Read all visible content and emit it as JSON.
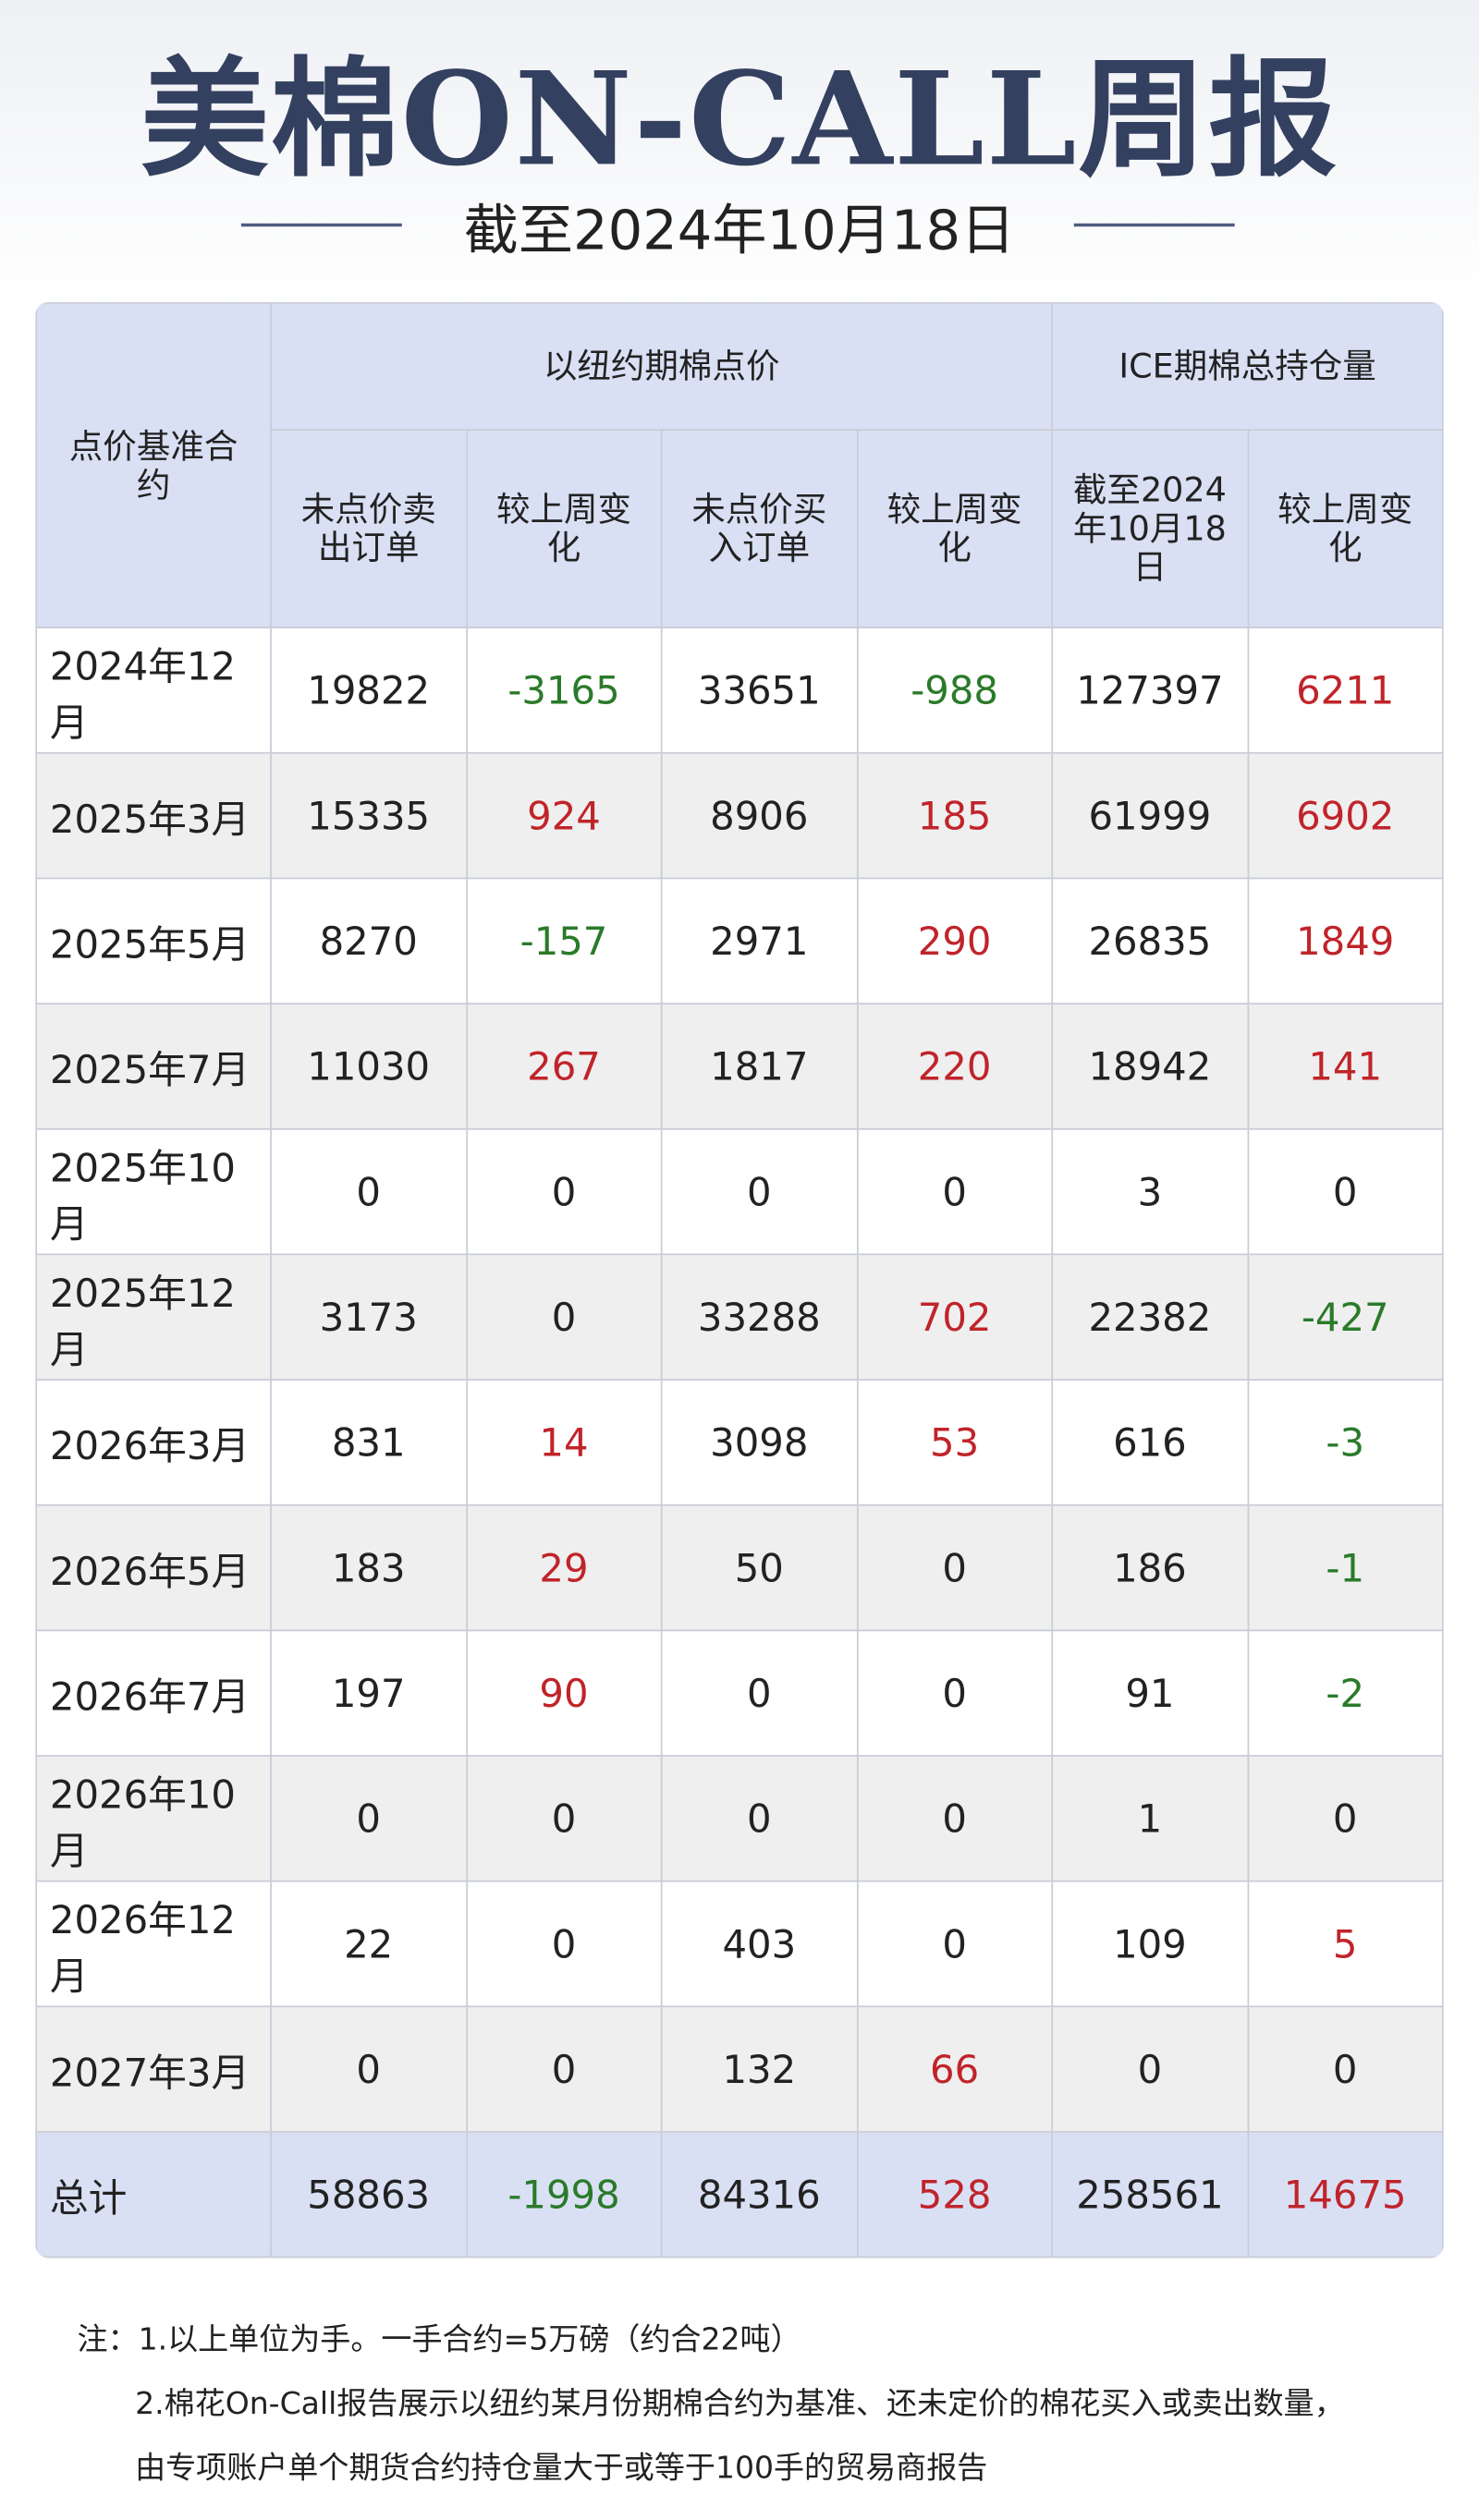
{
  "header": {
    "title": "美棉ON-CALL周报",
    "subtitle": "截至2024年10月18日"
  },
  "table": {
    "corner": "点价基准合约",
    "groups": [
      "以纽约期棉点价",
      "ICE期棉总持仓量"
    ],
    "columns": [
      "未点价卖出订单",
      "较上周变化",
      "未点价买入订单",
      "较上周变化",
      "截至2024年10月18日",
      "较上周变化"
    ],
    "rows": [
      [
        "2024年12月",
        "19822",
        "-3165",
        "33651",
        "-988",
        "127397",
        "6211"
      ],
      [
        "2025年3月",
        "15335",
        "924",
        "8906",
        "185",
        "61999",
        "6902"
      ],
      [
        "2025年5月",
        "8270",
        "-157",
        "2971",
        "290",
        "26835",
        "1849"
      ],
      [
        "2025年7月",
        "11030",
        "267",
        "1817",
        "220",
        "18942",
        "141"
      ],
      [
        "2025年10月",
        "0",
        "0",
        "0",
        "0",
        "3",
        "0"
      ],
      [
        "2025年12月",
        "3173",
        "0",
        "33288",
        "702",
        "22382",
        "-427"
      ],
      [
        "2026年3月",
        "831",
        "14",
        "3098",
        "53",
        "616",
        "-3"
      ],
      [
        "2026年5月",
        "183",
        "29",
        "50",
        "0",
        "186",
        "-1"
      ],
      [
        "2026年7月",
        "197",
        "90",
        "0",
        "0",
        "91",
        "-2"
      ],
      [
        "2026年10月",
        "0",
        "0",
        "0",
        "0",
        "1",
        "0"
      ],
      [
        "2026年12月",
        "22",
        "0",
        "403",
        "0",
        "109",
        "5"
      ],
      [
        "2027年3月",
        "0",
        "0",
        "132",
        "66",
        "0",
        "0"
      ]
    ],
    "total": [
      "总计",
      "58863",
      "-1998",
      "84316",
      "528",
      "258561",
      "14675"
    ]
  },
  "notes": [
    "注：1.以上单位为手。一手合约=5万磅（约合22吨）",
    "2.棉花On-Call报告展示以纽约某月份期棉合约为基准、还未定价的棉花买入或卖出数量，由专项账户单个期货合约持仓量大于或等于100手的贸易商报告"
  ]
}
